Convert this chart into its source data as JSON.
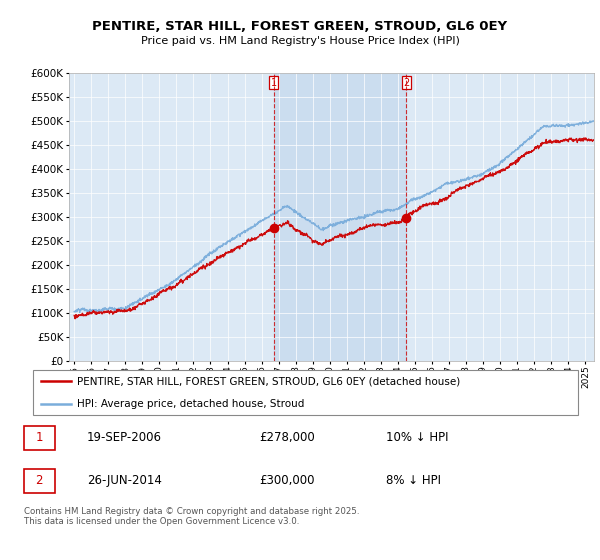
{
  "title": "PENTIRE, STAR HILL, FOREST GREEN, STROUD, GL6 0EY",
  "subtitle": "Price paid vs. HM Land Registry's House Price Index (HPI)",
  "legend_entry1": "PENTIRE, STAR HILL, FOREST GREEN, STROUD, GL6 0EY (detached house)",
  "legend_entry2": "HPI: Average price, detached house, Stroud",
  "sale1_date": "19-SEP-2006",
  "sale1_price": "£278,000",
  "sale1_hpi": "10% ↓ HPI",
  "sale2_date": "26-JUN-2014",
  "sale2_price": "£300,000",
  "sale2_hpi": "8% ↓ HPI",
  "footnote": "Contains HM Land Registry data © Crown copyright and database right 2025.\nThis data is licensed under the Open Government Licence v3.0.",
  "ylim": [
    0,
    600000
  ],
  "yticks": [
    0,
    50000,
    100000,
    150000,
    200000,
    250000,
    300000,
    350000,
    400000,
    450000,
    500000,
    550000,
    600000
  ],
  "background_color": "#dce9f5",
  "red_line_color": "#cc0000",
  "blue_line_color": "#7aaddb",
  "shade_color": "#c5d8ed",
  "sale1_x_year": 2006.72,
  "sale2_x_year": 2014.48,
  "xmin": 1994.7,
  "xmax": 2025.5
}
